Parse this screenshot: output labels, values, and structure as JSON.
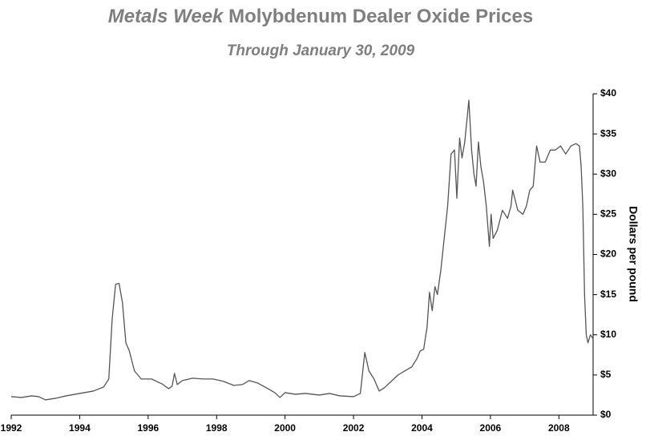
{
  "chart_data": {
    "type": "line",
    "title": [
      "Metals Week",
      "Molybdenum Dealer Oxide Prices"
    ],
    "subtitle": "Through January 30, 2009",
    "y_label": "Dollars per pound",
    "xlim": [
      1992,
      2009
    ],
    "xticks": [
      1992,
      1994,
      1996,
      1998,
      2000,
      2002,
      2004,
      2006,
      2008
    ],
    "ylim": [
      0,
      40
    ],
    "yticks": [
      {
        "value": 0,
        "label": "$0"
      },
      {
        "value": 5,
        "label": "$5"
      },
      {
        "value": 10,
        "label": "$10"
      },
      {
        "value": 15,
        "label": "$15"
      },
      {
        "value": 20,
        "label": "$20"
      },
      {
        "value": 25,
        "label": "$25"
      },
      {
        "value": 30,
        "label": "$30"
      },
      {
        "value": 35,
        "label": "$35"
      },
      {
        "value": 40,
        "label": "$40"
      }
    ],
    "color": "#555555",
    "x": [
      1992.0,
      1992.3,
      1992.6,
      1992.8,
      1993.0,
      1993.3,
      1993.6,
      1994.0,
      1994.4,
      1994.7,
      1994.85,
      1994.95,
      1995.05,
      1995.15,
      1995.25,
      1995.35,
      1995.45,
      1995.6,
      1995.8,
      1996.1,
      1996.4,
      1996.6,
      1996.7,
      1996.77,
      1996.85,
      1997.0,
      1997.3,
      1997.6,
      1997.9,
      1998.2,
      1998.5,
      1998.75,
      1998.95,
      1999.2,
      1999.5,
      1999.7,
      1999.85,
      2000.0,
      2000.3,
      2000.6,
      2001.0,
      2001.3,
      2001.6,
      2002.0,
      2002.2,
      2002.33,
      2002.45,
      2002.6,
      2002.75,
      2002.9,
      2003.1,
      2003.3,
      2003.5,
      2003.7,
      2003.85,
      2003.95,
      2004.05,
      2004.15,
      2004.22,
      2004.3,
      2004.38,
      2004.45,
      2004.55,
      2004.65,
      2004.75,
      2004.85,
      2004.95,
      2005.02,
      2005.1,
      2005.17,
      2005.25,
      2005.32,
      2005.37,
      2005.45,
      2005.52,
      2005.58,
      2005.65,
      2005.72,
      2005.8,
      2005.88,
      2005.97,
      2006.02,
      2006.08,
      2006.2,
      2006.35,
      2006.5,
      2006.6,
      2006.65,
      2006.8,
      2006.95,
      2007.05,
      2007.15,
      2007.25,
      2007.35,
      2007.45,
      2007.6,
      2007.75,
      2007.9,
      2008.05,
      2008.2,
      2008.35,
      2008.5,
      2008.6,
      2008.65,
      2008.7,
      2008.75,
      2008.8,
      2008.85,
      2008.92,
      2009.0
    ],
    "values": [
      2.3,
      2.2,
      2.4,
      2.3,
      1.9,
      2.1,
      2.4,
      2.7,
      3.0,
      3.5,
      4.5,
      12,
      16.3,
      16.4,
      14,
      9,
      8,
      5.5,
      4.5,
      4.5,
      3.9,
      3.3,
      3.6,
      5.2,
      3.8,
      4.3,
      4.6,
      4.5,
      4.5,
      4.2,
      3.7,
      3.8,
      4.3,
      4.0,
      3.3,
      2.8,
      2.2,
      2.8,
      2.6,
      2.7,
      2.5,
      2.7,
      2.4,
      2.3,
      2.7,
      7.8,
      5.5,
      4.5,
      3.0,
      3.4,
      4.2,
      5.0,
      5.5,
      6.0,
      7.0,
      8.0,
      8.2,
      11,
      15.3,
      13,
      16,
      15,
      18,
      22,
      26,
      32.5,
      33,
      27,
      34.5,
      32,
      34,
      37,
      39.2,
      33,
      30,
      28.5,
      34,
      31,
      29,
      26,
      21,
      25,
      22,
      23,
      25.5,
      24.5,
      26,
      28,
      25.5,
      25,
      26,
      28,
      28.5,
      33.5,
      31.5,
      31.5,
      33,
      33,
      33.5,
      32.5,
      33.5,
      33.8,
      33.5,
      31,
      26,
      15,
      10,
      9,
      10,
      9.5
    ]
  }
}
